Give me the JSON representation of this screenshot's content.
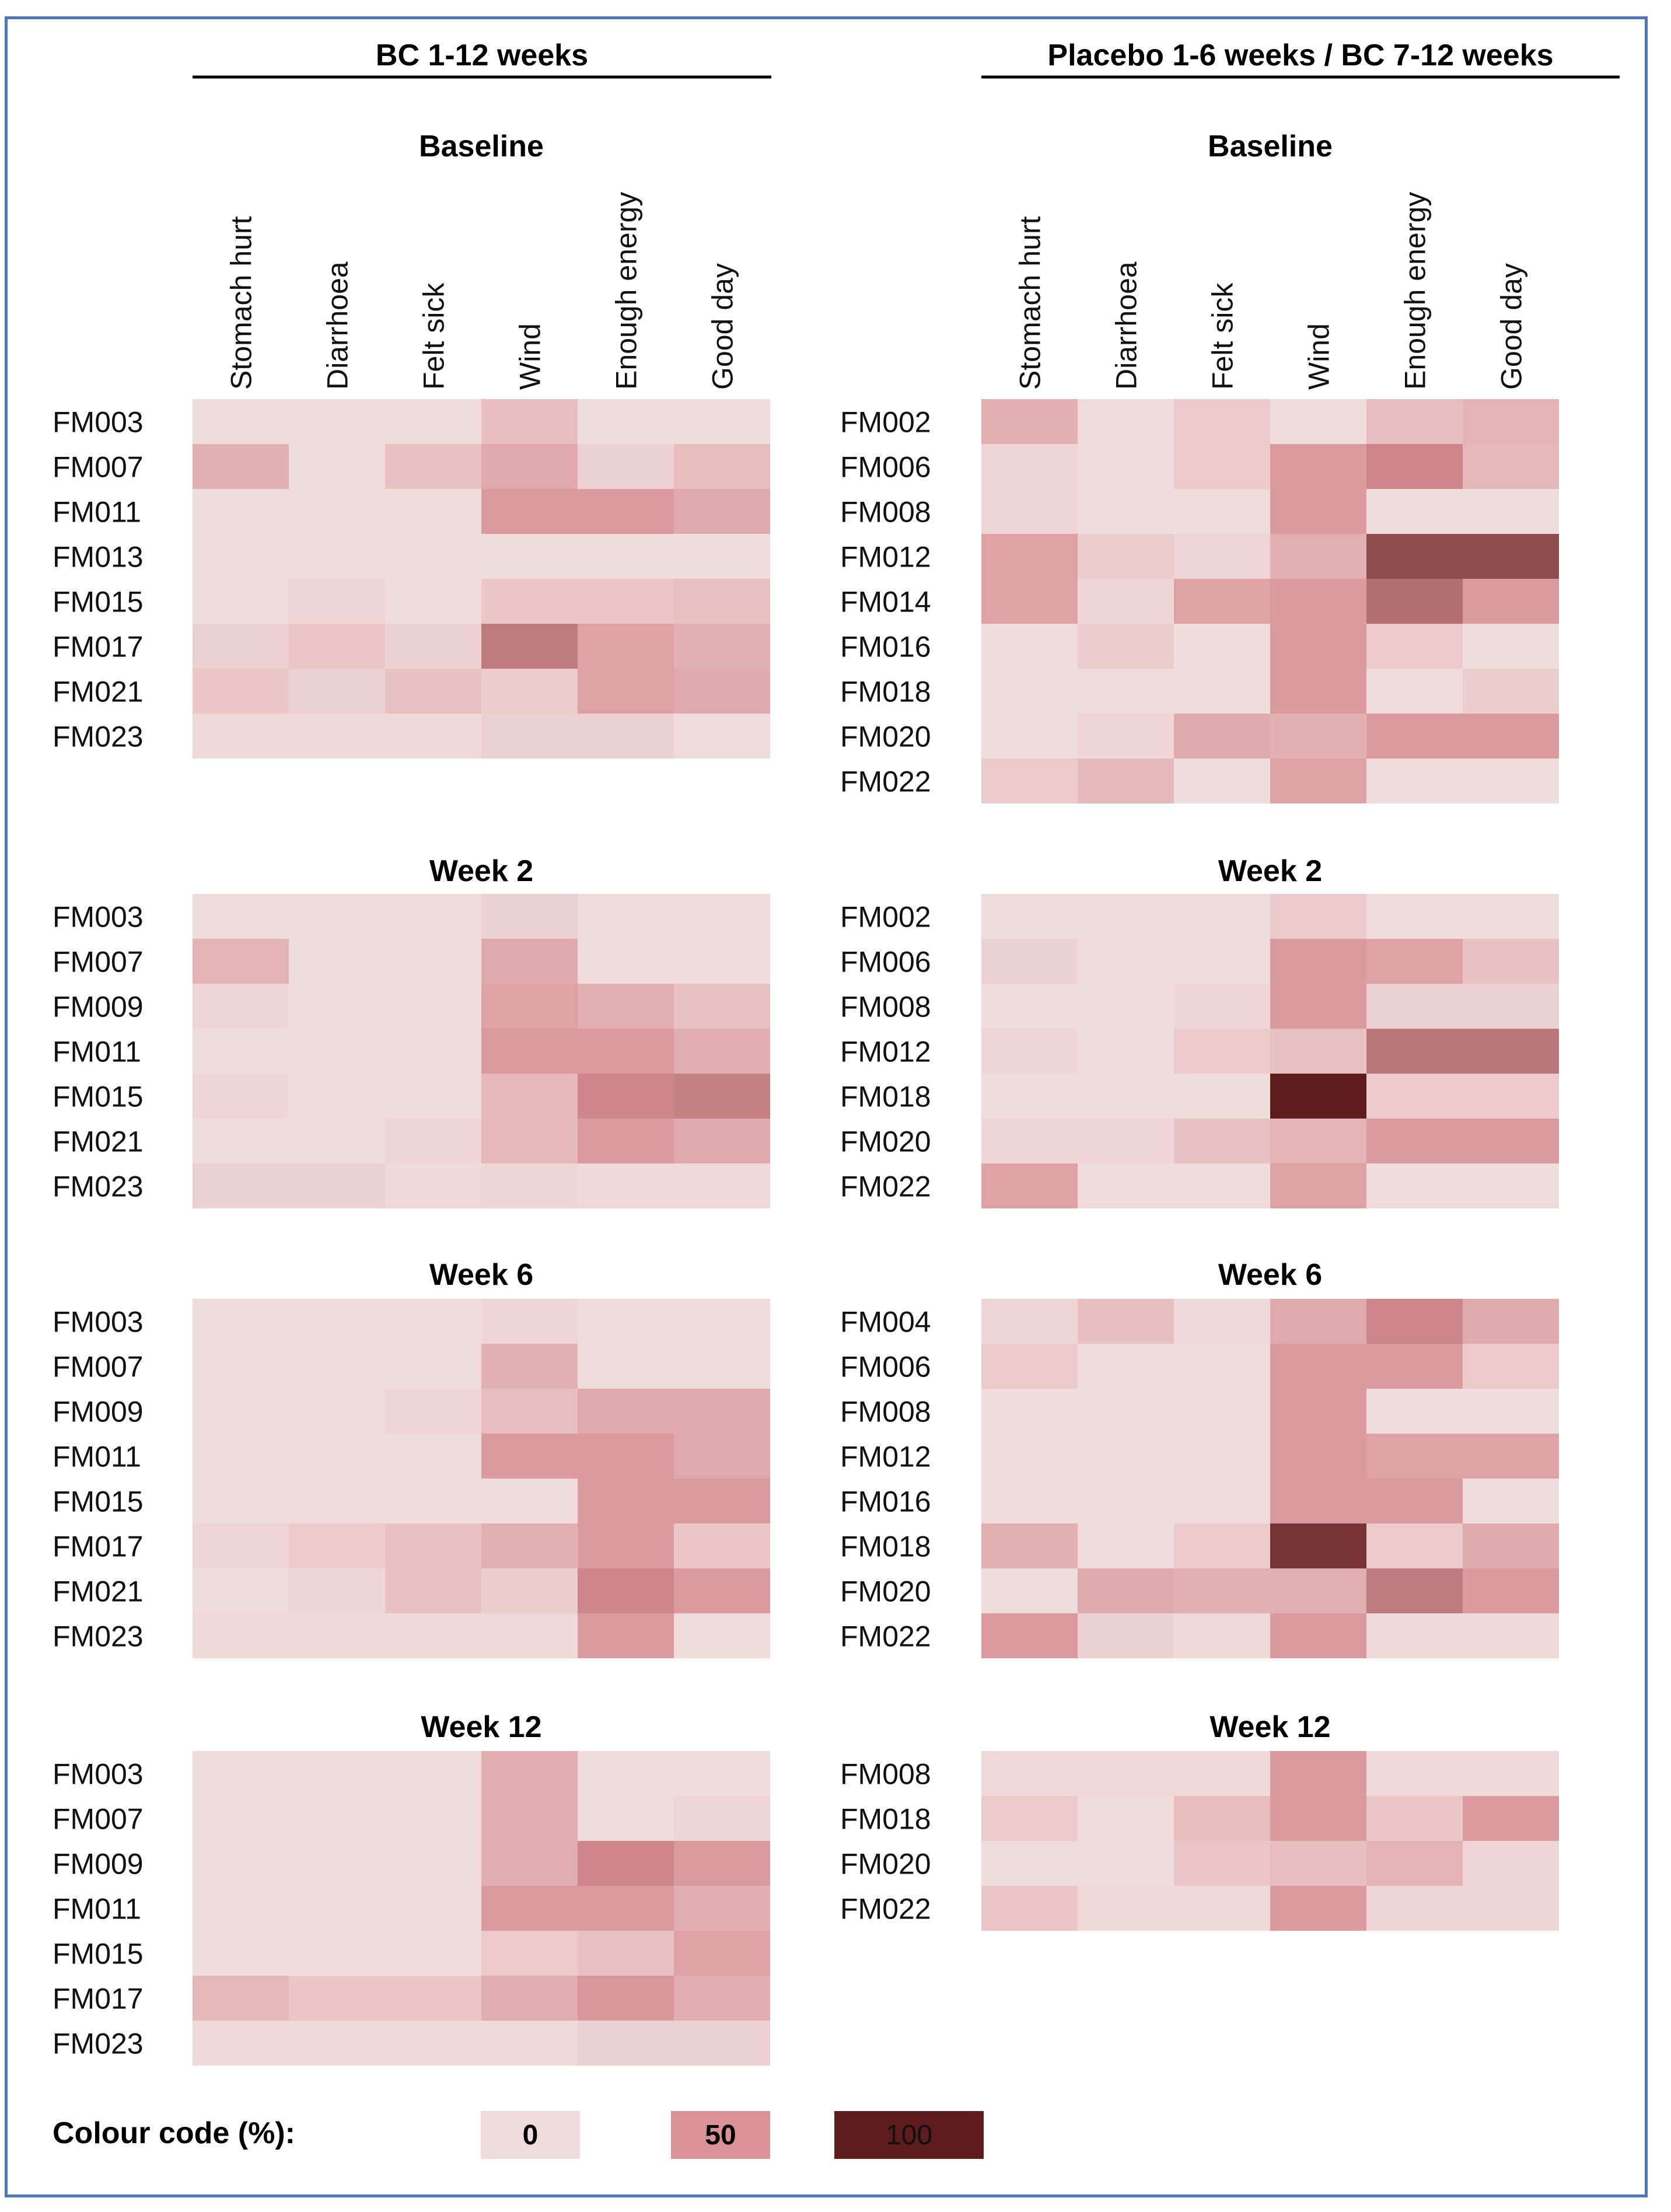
{
  "chart_data": {
    "type": "heatmap",
    "value_unit": "%",
    "colour_scale": {
      "label": "Colour code (%):",
      "stops": [
        {
          "label": "0",
          "value": 0,
          "color": "#f1dcdc"
        },
        {
          "label": "50",
          "value": 50,
          "color": "#d99396"
        },
        {
          "label": "100",
          "value": 100,
          "color": "#5e1c1c"
        }
      ]
    },
    "columns": [
      "Stomach hurt",
      "Diarrhoea",
      "Felt sick",
      "Wind",
      "Enough energy",
      "Good day"
    ],
    "groups": [
      {
        "title": "BC 1-12 weeks",
        "panels": [
          {
            "title": "Baseline",
            "rows": [
              "FM003",
              "FM007",
              "FM011",
              "FM013",
              "FM015",
              "FM017",
              "FM021",
              "FM023"
            ],
            "values": [
              [
                0,
                0,
                0,
                20,
                0,
                0
              ],
              [
                30,
                0,
                18,
                35,
                8,
                22
              ],
              [
                0,
                0,
                0,
                45,
                45,
                35
              ],
              [
                0,
                0,
                0,
                0,
                0,
                0
              ],
              [
                0,
                5,
                0,
                15,
                15,
                18
              ],
              [
                8,
                15,
                8,
                60,
                40,
                30
              ],
              [
                15,
                8,
                18,
                10,
                40,
                35
              ],
              [
                2,
                2,
                2,
                8,
                8,
                0
              ]
            ]
          },
          {
            "title": "Week 2",
            "rows": [
              "FM003",
              "FM007",
              "FM009",
              "FM011",
              "FM015",
              "FM021",
              "FM023"
            ],
            "values": [
              [
                0,
                0,
                0,
                8,
                0,
                0
              ],
              [
                28,
                0,
                0,
                35,
                0,
                0
              ],
              [
                5,
                0,
                0,
                40,
                30,
                18
              ],
              [
                0,
                0,
                0,
                45,
                45,
                32
              ],
              [
                5,
                0,
                0,
                25,
                55,
                58
              ],
              [
                0,
                0,
                5,
                25,
                45,
                35
              ],
              [
                8,
                8,
                2,
                5,
                2,
                2
              ]
            ]
          },
          {
            "title": "Week 6",
            "rows": [
              "FM003",
              "FM007",
              "FM009",
              "FM011",
              "FM015",
              "FM017",
              "FM021",
              "FM023"
            ],
            "values": [
              [
                0,
                0,
                0,
                5,
                0,
                0
              ],
              [
                0,
                0,
                0,
                30,
                0,
                0
              ],
              [
                0,
                0,
                5,
                20,
                35,
                35
              ],
              [
                0,
                0,
                0,
                45,
                45,
                35
              ],
              [
                0,
                0,
                0,
                0,
                45,
                45
              ],
              [
                5,
                12,
                18,
                30,
                45,
                15
              ],
              [
                0,
                5,
                18,
                10,
                55,
                45
              ],
              [
                2,
                2,
                2,
                2,
                45,
                0
              ]
            ]
          },
          {
            "title": "Week 12",
            "rows": [
              "FM003",
              "FM007",
              "FM009",
              "FM011",
              "FM015",
              "FM017",
              "FM023"
            ],
            "values": [
              [
                0,
                0,
                0,
                32,
                0,
                0
              ],
              [
                0,
                0,
                0,
                32,
                0,
                5
              ],
              [
                0,
                0,
                0,
                32,
                55,
                45
              ],
              [
                0,
                0,
                0,
                45,
                45,
                32
              ],
              [
                0,
                0,
                0,
                12,
                18,
                40
              ],
              [
                25,
                15,
                15,
                32,
                48,
                32
              ],
              [
                2,
                2,
                2,
                2,
                8,
                8
              ]
            ]
          }
        ]
      },
      {
        "title": "Placebo 1-6 weeks / BC 7-12 weeks",
        "panels": [
          {
            "title": "Baseline",
            "rows": [
              "FM002",
              "FM006",
              "FM008",
              "FM012",
              "FM014",
              "FM016",
              "FM018",
              "FM020",
              "FM022"
            ],
            "values": [
              [
                30,
                0,
                12,
                0,
                20,
                28
              ],
              [
                5,
                0,
                12,
                45,
                55,
                25
              ],
              [
                5,
                0,
                0,
                45,
                0,
                0
              ],
              [
                40,
                10,
                5,
                30,
                80,
                80
              ],
              [
                40,
                5,
                40,
                45,
                65,
                45
              ],
              [
                0,
                10,
                0,
                45,
                12,
                0
              ],
              [
                0,
                0,
                0,
                45,
                0,
                10
              ],
              [
                0,
                5,
                35,
                30,
                45,
                45
              ],
              [
                12,
                25,
                0,
                40,
                0,
                0
              ]
            ]
          },
          {
            "title": "Week 2",
            "rows": [
              "FM002",
              "FM006",
              "FM008",
              "FM012",
              "FM018",
              "FM020",
              "FM022"
            ],
            "values": [
              [
                0,
                0,
                0,
                12,
                0,
                0
              ],
              [
                8,
                0,
                0,
                45,
                40,
                18
              ],
              [
                0,
                0,
                5,
                45,
                8,
                8
              ],
              [
                5,
                0,
                12,
                18,
                62,
                62
              ],
              [
                0,
                0,
                0,
                100,
                12,
                12
              ],
              [
                5,
                5,
                18,
                28,
                45,
                45
              ],
              [
                40,
                0,
                0,
                40,
                0,
                0
              ]
            ]
          },
          {
            "title": "Week 6",
            "rows": [
              "FM004",
              "FM006",
              "FM008",
              "FM012",
              "FM016",
              "FM018",
              "FM020",
              "FM022"
            ],
            "values": [
              [
                5,
                20,
                2,
                35,
                55,
                35
              ],
              [
                12,
                0,
                0,
                45,
                45,
                12
              ],
              [
                0,
                0,
                0,
                45,
                0,
                0
              ],
              [
                0,
                0,
                0,
                45,
                40,
                40
              ],
              [
                0,
                0,
                0,
                45,
                45,
                0
              ],
              [
                30,
                0,
                12,
                90,
                12,
                35
              ],
              [
                0,
                35,
                30,
                30,
                60,
                45
              ],
              [
                45,
                8,
                2,
                45,
                2,
                2
              ]
            ]
          },
          {
            "title": "Week 12",
            "rows": [
              "FM008",
              "FM018",
              "FM020",
              "FM022"
            ],
            "values": [
              [
                2,
                2,
                2,
                45,
                2,
                2
              ],
              [
                12,
                0,
                22,
                45,
                15,
                45
              ],
              [
                0,
                0,
                15,
                20,
                28,
                5
              ],
              [
                15,
                2,
                2,
                45,
                5,
                5
              ]
            ]
          }
        ]
      }
    ]
  }
}
